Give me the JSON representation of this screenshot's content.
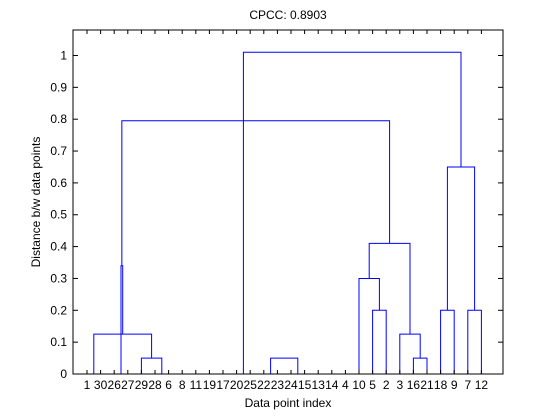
{
  "chart_data": {
    "type": "dendrogram",
    "title": "CPCC: 0.8903",
    "xlabel": "Data point index",
    "ylabel": "Distance b/w data points",
    "ylim": [
      0,
      1.08
    ],
    "y_ticks": [
      0,
      0.1,
      0.2,
      0.3,
      0.4,
      0.5,
      0.6,
      0.7,
      0.8,
      0.9,
      1
    ],
    "y_tick_labels": [
      "0",
      "0.1",
      "0.2",
      "0.3",
      "0.4",
      "0.5",
      "0.6",
      "0.7",
      "0.8",
      "0.9",
      "1"
    ],
    "leaf_labels": [
      "1",
      "30",
      "26",
      "27",
      "29",
      "28",
      "6",
      "8",
      "11",
      "19",
      "17",
      "20",
      "25",
      "22",
      "23",
      "24",
      "15",
      "13",
      "14",
      "4",
      "10",
      "5",
      "2",
      "3",
      "16",
      "21",
      "18",
      "9",
      "7",
      "12"
    ],
    "merges": [
      {
        "left": "leaf:0",
        "right": "leaf:1",
        "height": 0
      },
      {
        "left": "leaf:2",
        "right": "leaf:3",
        "height": 0
      },
      {
        "left": "leaf:5",
        "right": "leaf:6",
        "height": 0
      },
      {
        "left": "leaf:7",
        "right": "leaf:8",
        "height": 0
      },
      {
        "left": "leaf:9",
        "right": "leaf:10",
        "height": 0
      },
      {
        "left": "leaf:11",
        "right": "leaf:12",
        "height": 0
      },
      {
        "left": "leaf:13",
        "right": "leaf:14",
        "height": 0
      },
      {
        "left": "leaf:15",
        "right": "leaf:16",
        "height": 0
      },
      {
        "left": "leaf:17",
        "right": "leaf:18",
        "height": 0
      },
      {
        "left": "leaf:4",
        "right": "leaf:5",
        "height": 0.05
      },
      {
        "left": "leaf:13",
        "right": "leaf:15",
        "height": 0.05
      },
      {
        "left": "leaf:1",
        "right": "leaf:4",
        "height": 0.125
      },
      {
        "left": "leaf:3",
        "right": "leaf:6",
        "height": 0.34
      },
      {
        "left": "leaf:21",
        "right": "leaf:22",
        "height": 0.2
      },
      {
        "left": "leaf:20",
        "right": "leaf:21",
        "height": 0.3
      },
      {
        "left": "leaf:24",
        "right": "leaf:25",
        "height": 0.05
      },
      {
        "left": "leaf:23",
        "right": "leaf:24",
        "height": 0.125
      },
      {
        "left": "leaf:20",
        "right": "leaf:23",
        "height": 0.41
      },
      {
        "left": "leaf:5",
        "right": "leaf:22",
        "height": 0.795
      },
      {
        "left": "leaf:26",
        "right": "leaf:27",
        "height": 0.2
      },
      {
        "left": "leaf:28",
        "right": "leaf:29",
        "height": 0.2
      },
      {
        "left": "leaf:26",
        "right": "leaf:28",
        "height": 0.65
      },
      {
        "left": "leaf:12",
        "right": "leaf:27",
        "height": 1.01
      }
    ]
  }
}
